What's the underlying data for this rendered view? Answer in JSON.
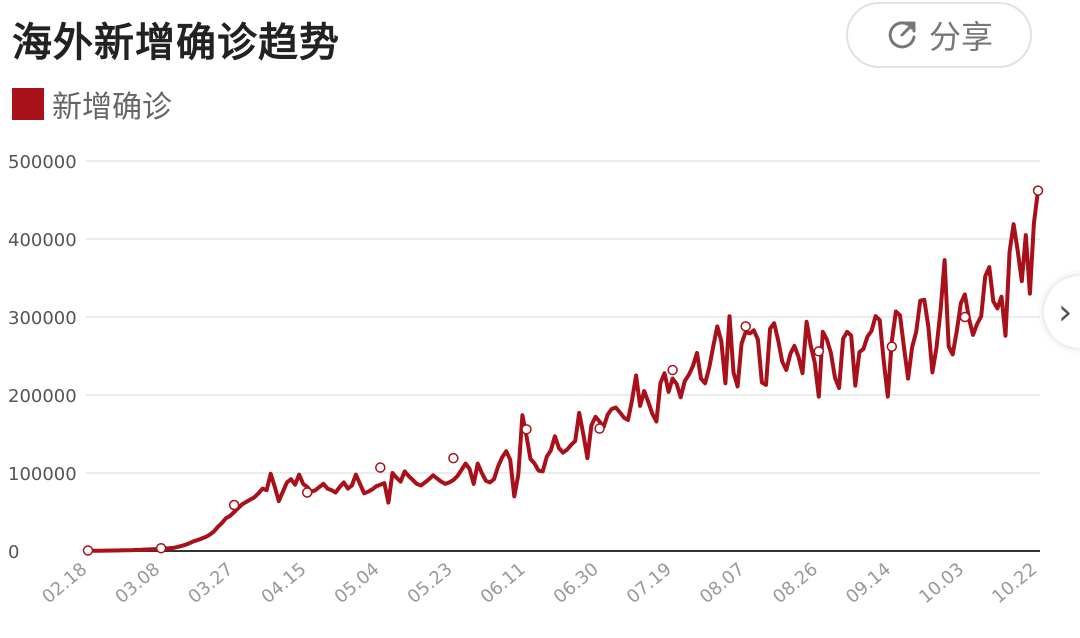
{
  "title": "海外新增确诊趋势",
  "share_label": "分享",
  "icons": {
    "share": "share-icon",
    "next": "chevron-right-icon"
  },
  "next_glyph": "›",
  "legend": {
    "label": "新增确诊",
    "color": "#a8101a"
  },
  "chart_data": {
    "type": "line",
    "title": "海外新增确诊趋势",
    "xlabel": "",
    "ylabel": "",
    "x_tick_labels": [
      "02.18",
      "03.08",
      "03.27",
      "04.15",
      "05.04",
      "05.23",
      "06.11",
      "06.30",
      "07.19",
      "08.07",
      "08.26",
      "09.14",
      "10.03",
      "10.22"
    ],
    "y_tick_labels": [
      "0",
      "100000",
      "200000",
      "300000",
      "400000",
      "500000"
    ],
    "ylim": [
      0,
      500000
    ],
    "grid": true,
    "legend_position": "top-left",
    "series": [
      {
        "name": "新增确诊",
        "color": "#a8101a",
        "start_date": "2020-02-18",
        "values": [
          200,
          300,
          300,
          400,
          500,
          500,
          600,
          700,
          800,
          900,
          1000,
          1200,
          1400,
          1600,
          1800,
          2000,
          2300,
          2600,
          2900,
          3200,
          3600,
          4000,
          5000,
          6500,
          8000,
          10000,
          12500,
          14000,
          16000,
          18000,
          21000,
          25000,
          31000,
          36000,
          42000,
          45000,
          50000,
          55000,
          60000,
          63000,
          66000,
          69000,
          74000,
          80000,
          78000,
          99000,
          82000,
          64000,
          76000,
          88000,
          92000,
          85000,
          98000,
          86000,
          82000,
          76000,
          78000,
          82000,
          86000,
          80000,
          78000,
          75000,
          82000,
          88000,
          80000,
          84000,
          98000,
          86000,
          74000,
          76000,
          79000,
          83000,
          85000,
          87000,
          62000,
          100000,
          94000,
          89000,
          102000,
          96000,
          91000,
          86000,
          84000,
          88000,
          92000,
          97000,
          93000,
          89000,
          86000,
          88000,
          91000,
          96000,
          104000,
          112000,
          105000,
          86000,
          112000,
          100000,
          90000,
          88000,
          92000,
          108000,
          120000,
          128000,
          117000,
          70000,
          98000,
          174000,
          147000,
          118000,
          112000,
          103000,
          102000,
          121000,
          129000,
          147000,
          132000,
          126000,
          130000,
          136000,
          141000,
          177000,
          150000,
          119000,
          161000,
          172000,
          166000,
          159000,
          175000,
          182000,
          184000,
          178000,
          171000,
          168000,
          193000,
          225000,
          186000,
          205000,
          191000,
          176000,
          166000,
          215000,
          228000,
          204000,
          221000,
          214000,
          197000,
          218000,
          226000,
          237000,
          254000,
          221000,
          215000,
          235000,
          262000,
          288000,
          269000,
          215000,
          301000,
          229000,
          211000,
          266000,
          281000,
          279000,
          283000,
          271000,
          216000,
          213000,
          285000,
          292000,
          270000,
          243000,
          232000,
          253000,
          263000,
          249000,
          228000,
          294000,
          264000,
          242000,
          198000,
          281000,
          271000,
          254000,
          222000,
          209000,
          272000,
          281000,
          276000,
          212000,
          255000,
          259000,
          275000,
          282000,
          301000,
          296000,
          244000,
          198000,
          269000,
          307000,
          302000,
          261000,
          221000,
          261000,
          281000,
          321000,
          322000,
          287000,
          229000,
          261000,
          309000,
          373000,
          262000,
          252000,
          282000,
          318000,
          329000,
          298000,
          277000,
          291000,
          301000,
          352000,
          364000,
          320000,
          311000,
          326000,
          276000,
          384000,
          419000,
          385000,
          346000,
          405000,
          330000,
          420000,
          462000
        ]
      }
    ],
    "highlight_point_values": [
      700,
      3600,
      59000,
      75000,
      107000,
      119000,
      156000,
      157000,
      232000,
      288000,
      256000,
      262000,
      300000,
      462000
    ]
  }
}
